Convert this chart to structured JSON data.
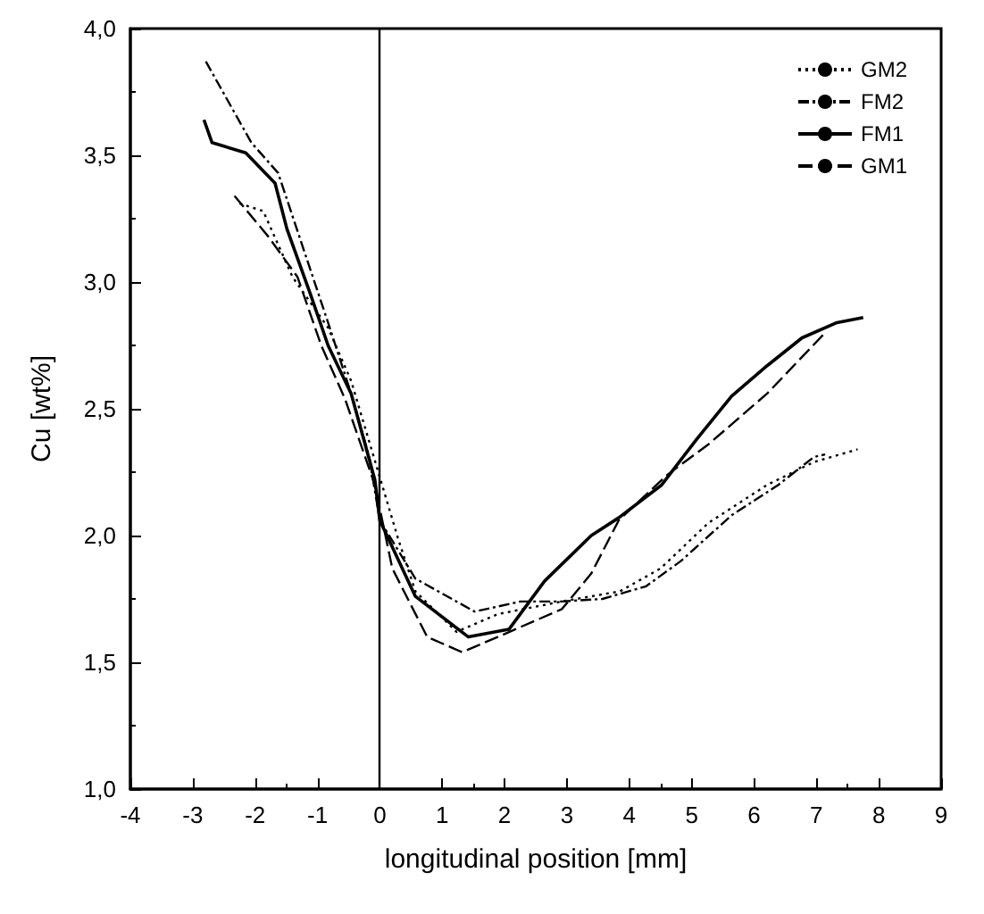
{
  "chart_data": {
    "type": "line",
    "xlabel": "longitudinal position [mm]",
    "ylabel": "Cu [wt%]",
    "xlim": [
      -4,
      9
    ],
    "xticks": [
      -4,
      -3,
      -2,
      -1,
      0,
      1,
      2,
      3,
      4,
      5,
      6,
      7,
      8,
      9
    ],
    "ylim": [
      1,
      4
    ],
    "yticks": [
      {
        "value": 1,
        "label": "1,0"
      },
      {
        "value": 1.5,
        "label": "1,5"
      },
      {
        "value": 2,
        "label": "2,0"
      },
      {
        "value": 2.5,
        "label": "2,5"
      },
      {
        "value": 3,
        "label": "3,0"
      },
      {
        "value": 3.5,
        "label": "3,5"
      },
      {
        "value": 4,
        "label": "4,0"
      }
    ],
    "grid": false,
    "legend": "top right",
    "marker": "none",
    "ref_lines": [
      {
        "axis": "x",
        "value": 0,
        "color": "#000000",
        "line_style": "solid"
      }
    ],
    "series": [
      {
        "name": "GM2",
        "color": "#000000",
        "line_style": "dotted",
        "x": [
          -2.25,
          -1.87,
          -1.4,
          -0.83,
          -0.46,
          0.29,
          0.57,
          1.23,
          1.89,
          2.92,
          3.85,
          4.5,
          5.27,
          6.21,
          6.96,
          7.66
        ],
        "values": [
          3.31,
          3.28,
          3.02,
          2.82,
          2.61,
          1.99,
          1.78,
          1.62,
          1.69,
          1.74,
          1.78,
          1.87,
          2.05,
          2.2,
          2.29,
          2.34
        ]
      },
      {
        "name": "FM2",
        "color": "#000000",
        "line_style": "dashdot",
        "x": [
          -2.79,
          -2.06,
          -1.63,
          -1.21,
          -0.83,
          -0.46,
          -0.17,
          0,
          0.57,
          1.52,
          2.26,
          2.92,
          3.57,
          4.27,
          4.83,
          5.64,
          6.39,
          6.96,
          7.14
        ],
        "values": [
          3.87,
          3.55,
          3.43,
          3.12,
          2.84,
          2.56,
          2.31,
          2.06,
          1.83,
          1.7,
          1.74,
          1.74,
          1.75,
          1.8,
          1.9,
          2.08,
          2.2,
          2.31,
          2.32
        ]
      },
      {
        "name": "FM1",
        "color": "#000000",
        "line_style": "solid",
        "x": [
          -2.82,
          -2.69,
          -2.15,
          -1.68,
          -1.49,
          -1.11,
          -0.83,
          -0.46,
          -0.08,
          0,
          0.57,
          1.42,
          2.07,
          2.64,
          3.39,
          3.83,
          4.52,
          5.08,
          5.64,
          6.21,
          6.77,
          7.33,
          7.75
        ],
        "values": [
          3.64,
          3.55,
          3.51,
          3.39,
          3.21,
          2.95,
          2.75,
          2.56,
          2.22,
          2.06,
          1.76,
          1.6,
          1.63,
          1.82,
          2,
          2.07,
          2.2,
          2.38,
          2.55,
          2.67,
          2.78,
          2.84,
          2.86
        ]
      },
      {
        "name": "GM1",
        "color": "#000000",
        "line_style": "dashed",
        "x": [
          -2.33,
          -1.79,
          -1.32,
          -0.94,
          -0.56,
          -0.08,
          0.2,
          0.76,
          1.32,
          1.89,
          2.92,
          3.39,
          3.83,
          4.61,
          5.27,
          6.21,
          7.14
        ],
        "values": [
          3.34,
          3.18,
          3.02,
          2.75,
          2.54,
          2.2,
          1.87,
          1.6,
          1.54,
          1.6,
          1.71,
          1.85,
          2.06,
          2.24,
          2.36,
          2.56,
          2.8
        ]
      }
    ]
  }
}
